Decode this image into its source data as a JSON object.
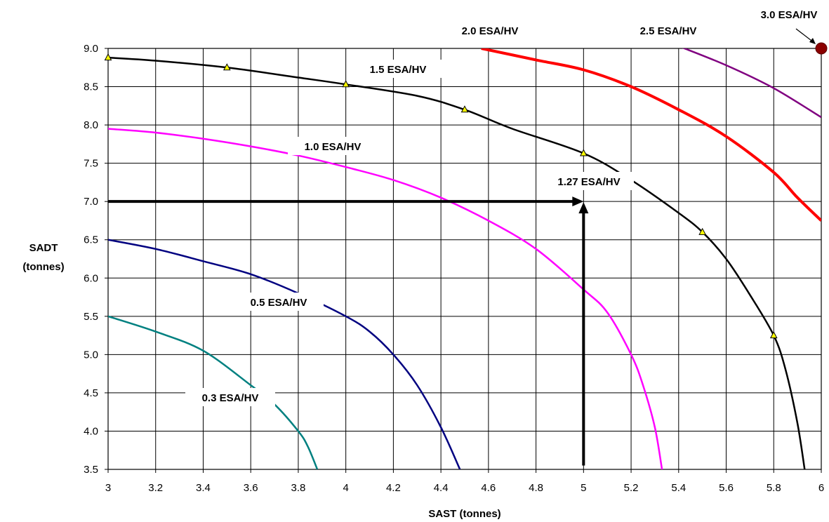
{
  "chart_data": {
    "type": "line",
    "xlabel": "SAST (tonnes)",
    "ylabel": [
      "SADT",
      "(tonnes)"
    ],
    "xlim": [
      3,
      6
    ],
    "ylim": [
      3.5,
      9.0
    ],
    "x_ticks": [
      "3",
      "3.2",
      "3.4",
      "3.6",
      "3.8",
      "4",
      "4.2",
      "4.4",
      "4.6",
      "4.8",
      "5",
      "5.2",
      "5.4",
      "5.6",
      "5.8",
      "6"
    ],
    "y_ticks": [
      "3.5",
      "4.0",
      "4.5",
      "5.0",
      "5.5",
      "6.0",
      "6.5",
      "7.0",
      "7.5",
      "8.0",
      "8.5",
      "9.0"
    ],
    "grid": true,
    "series": [
      {
        "name": "0.3 ESA/HV",
        "color": "#008080",
        "width": 2.5,
        "points": [
          [
            3.0,
            5.5
          ],
          [
            3.2,
            5.3
          ],
          [
            3.4,
            5.05
          ],
          [
            3.6,
            4.6
          ],
          [
            3.7,
            4.35
          ],
          [
            3.8,
            4.0
          ],
          [
            3.84,
            3.8
          ],
          [
            3.88,
            3.5
          ]
        ]
      },
      {
        "name": "0.5 ESA/HV",
        "color": "#000080",
        "width": 2.5,
        "points": [
          [
            3.0,
            6.5
          ],
          [
            3.2,
            6.38
          ],
          [
            3.4,
            6.22
          ],
          [
            3.6,
            6.05
          ],
          [
            3.8,
            5.8
          ],
          [
            4.0,
            5.5
          ],
          [
            4.1,
            5.3
          ],
          [
            4.2,
            5.0
          ],
          [
            4.3,
            4.6
          ],
          [
            4.4,
            4.05
          ],
          [
            4.48,
            3.5
          ]
        ]
      },
      {
        "name": "1.0 ESA/HV",
        "color": "#ff00ff",
        "width": 2.5,
        "points": [
          [
            3.0,
            7.95
          ],
          [
            3.2,
            7.9
          ],
          [
            3.4,
            7.82
          ],
          [
            3.6,
            7.72
          ],
          [
            3.8,
            7.6
          ],
          [
            4.0,
            7.45
          ],
          [
            4.2,
            7.28
          ],
          [
            4.4,
            7.05
          ],
          [
            4.6,
            6.75
          ],
          [
            4.8,
            6.38
          ],
          [
            5.0,
            5.85
          ],
          [
            5.1,
            5.55
          ],
          [
            5.2,
            5.0
          ],
          [
            5.25,
            4.6
          ],
          [
            5.3,
            4.05
          ],
          [
            5.33,
            3.5
          ]
        ]
      },
      {
        "name": "1.5 ESA/HV",
        "color": "#000000",
        "width": 2.5,
        "markers": true,
        "points": [
          [
            3.0,
            8.88
          ],
          [
            3.2,
            8.84
          ],
          [
            3.5,
            8.75
          ],
          [
            3.8,
            8.62
          ],
          [
            4.0,
            8.53
          ],
          [
            4.3,
            8.38
          ],
          [
            4.5,
            8.2
          ],
          [
            4.7,
            7.95
          ],
          [
            5.0,
            7.63
          ],
          [
            5.2,
            7.28
          ],
          [
            5.4,
            6.85
          ],
          [
            5.5,
            6.6
          ],
          [
            5.6,
            6.25
          ],
          [
            5.7,
            5.78
          ],
          [
            5.8,
            5.25
          ],
          [
            5.85,
            4.8
          ],
          [
            5.9,
            4.1
          ],
          [
            5.93,
            3.5
          ]
        ]
      },
      {
        "name": "2.0 ESA/HV",
        "color": "#ff0000",
        "width": 4,
        "points": [
          [
            4.57,
            9.0
          ],
          [
            4.8,
            8.85
          ],
          [
            5.0,
            8.72
          ],
          [
            5.2,
            8.5
          ],
          [
            5.4,
            8.2
          ],
          [
            5.6,
            7.85
          ],
          [
            5.8,
            7.38
          ],
          [
            5.9,
            7.05
          ],
          [
            6.0,
            6.75
          ]
        ]
      },
      {
        "name": "2.5 ESA/HV",
        "color": "#800080",
        "width": 2.5,
        "points": [
          [
            5.4,
            9.03
          ],
          [
            5.6,
            8.78
          ],
          [
            5.8,
            8.48
          ],
          [
            6.0,
            8.1
          ]
        ]
      }
    ],
    "marker_points": [
      [
        3.0,
        8.88
      ],
      [
        3.5,
        8.75
      ],
      [
        4.0,
        8.53
      ],
      [
        4.5,
        8.2
      ],
      [
        5.0,
        7.63
      ],
      [
        5.5,
        6.6
      ],
      [
        5.8,
        5.25
      ]
    ],
    "point_3_0": {
      "x": 6.0,
      "y": 9.0,
      "label": "3.0 ESA/HV",
      "color": "#8b0000"
    },
    "interpolation": {
      "x": 5.0,
      "y": 7.0,
      "label": "1.27 ESA/HV"
    },
    "labels": {
      "s03": "0.3 ESA/HV",
      "s05": "0.5 ESA/HV",
      "s10": "1.0 ESA/HV",
      "s15": "1.5 ESA/HV",
      "s20": "2.0 ESA/HV",
      "s25": "2.5 ESA/HV",
      "s30": "3.0 ESA/HV",
      "s127": "1.27 ESA/HV"
    }
  }
}
